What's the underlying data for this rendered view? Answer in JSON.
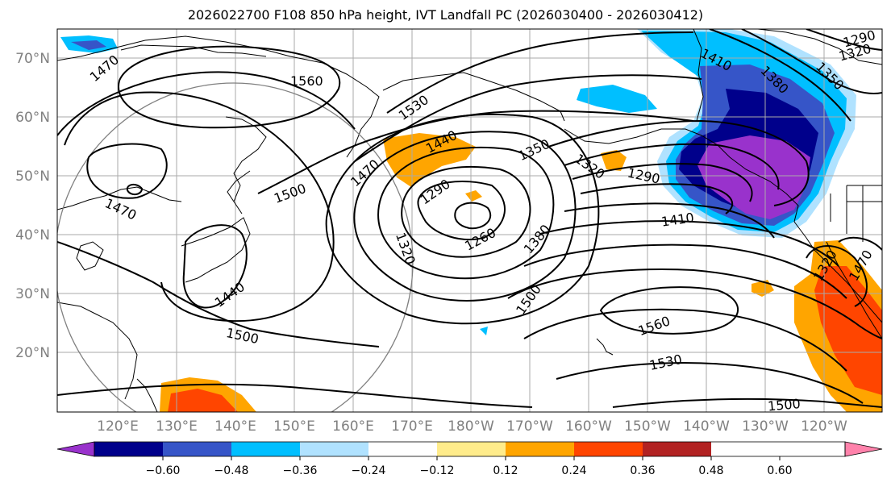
{
  "title": "2026022700 F108 850 hPa height, IVT Landfall PC (2026030400 - 2026030412)",
  "map": {
    "lat_labels": [
      "70°N",
      "60°N",
      "50°N",
      "40°N",
      "30°N",
      "20°N"
    ],
    "lon_labels": [
      "120°E",
      "130°E",
      "140°E",
      "150°E",
      "160°E",
      "170°E",
      "180°W",
      "170°W",
      "160°W",
      "150°W",
      "140°W",
      "130°W",
      "120°W"
    ],
    "contour_labels": [
      {
        "text": "1470"
      },
      {
        "text": "1560"
      },
      {
        "text": "1530"
      },
      {
        "text": "1440"
      },
      {
        "text": "1350"
      },
      {
        "text": "1470"
      },
      {
        "text": "1500"
      },
      {
        "text": "1290"
      },
      {
        "text": "1320"
      },
      {
        "text": "1290"
      },
      {
        "text": "1410"
      },
      {
        "text": "1410"
      },
      {
        "text": "1380"
      },
      {
        "text": "1350"
      },
      {
        "text": "1290"
      },
      {
        "text": "1320"
      },
      {
        "text": "1260"
      },
      {
        "text": "1380"
      },
      {
        "text": "1320"
      },
      {
        "text": "1470"
      },
      {
        "text": "1440"
      },
      {
        "text": "1500"
      },
      {
        "text": "1500"
      },
      {
        "text": "1560"
      },
      {
        "text": "1530"
      },
      {
        "text": "1500"
      },
      {
        "text": "1320"
      },
      {
        "text": "1470"
      }
    ]
  },
  "colorbar": {
    "colors": [
      "#9932cc",
      "#00008b",
      "#3655c8",
      "#00bfff",
      "#b0e2ff",
      "#ffffff",
      "#ffec8b",
      "#ffa500",
      "#ff4500",
      "#b22222",
      "#ff82ab"
    ],
    "tick_labels": [
      "−0.60",
      "−0.48",
      "−0.36",
      "−0.24",
      "−0.12",
      "0.12",
      "0.24",
      "0.36",
      "0.48",
      "0.60"
    ]
  }
}
